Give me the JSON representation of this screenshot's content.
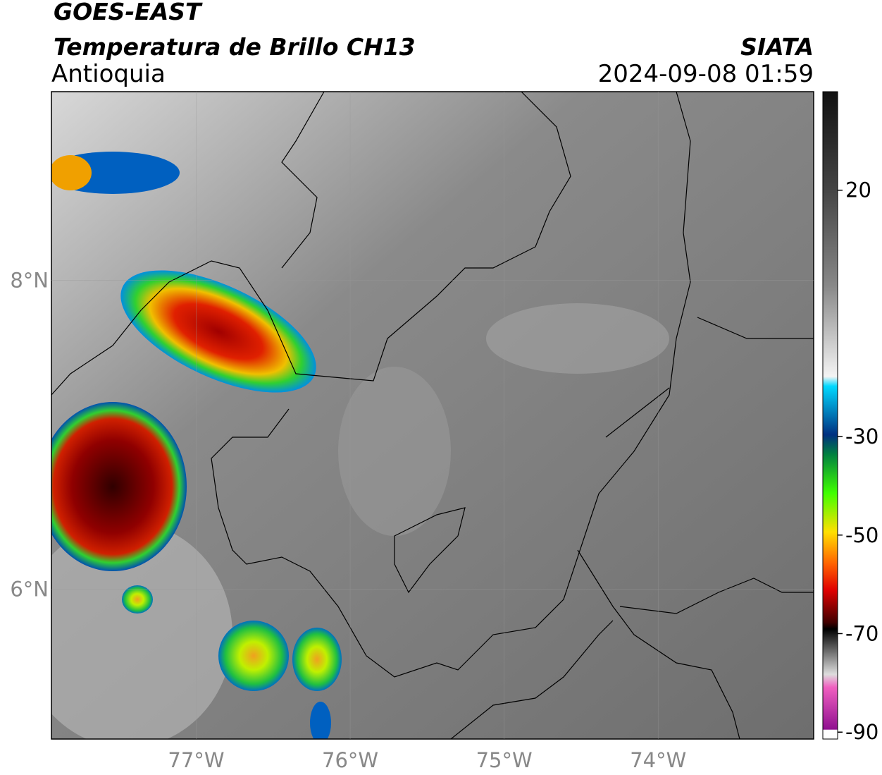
{
  "header": {
    "title": "GOES-EAST",
    "subtitle": "Temperatura de Brillo CH13",
    "region": "Antioquia",
    "source": "SIATA",
    "datetime": "2024-09-08 01:59"
  },
  "map": {
    "xlim": [
      -77.94,
      -72.99
    ],
    "ylim": [
      5.03,
      9.22
    ],
    "xticks": [
      {
        "value": -77,
        "label": "77°W"
      },
      {
        "value": -76,
        "label": "76°W"
      },
      {
        "value": -75,
        "label": "75°W"
      },
      {
        "value": -74,
        "label": "74°W"
      }
    ],
    "yticks": [
      {
        "value": 6,
        "label": "6°N"
      },
      {
        "value": 8,
        "label": "8°N"
      }
    ],
    "grid": true
  },
  "colorbar": {
    "lim": [
      -91.4,
      40
    ],
    "ticks": [
      20,
      -30,
      -50,
      -70,
      -90
    ]
  }
}
